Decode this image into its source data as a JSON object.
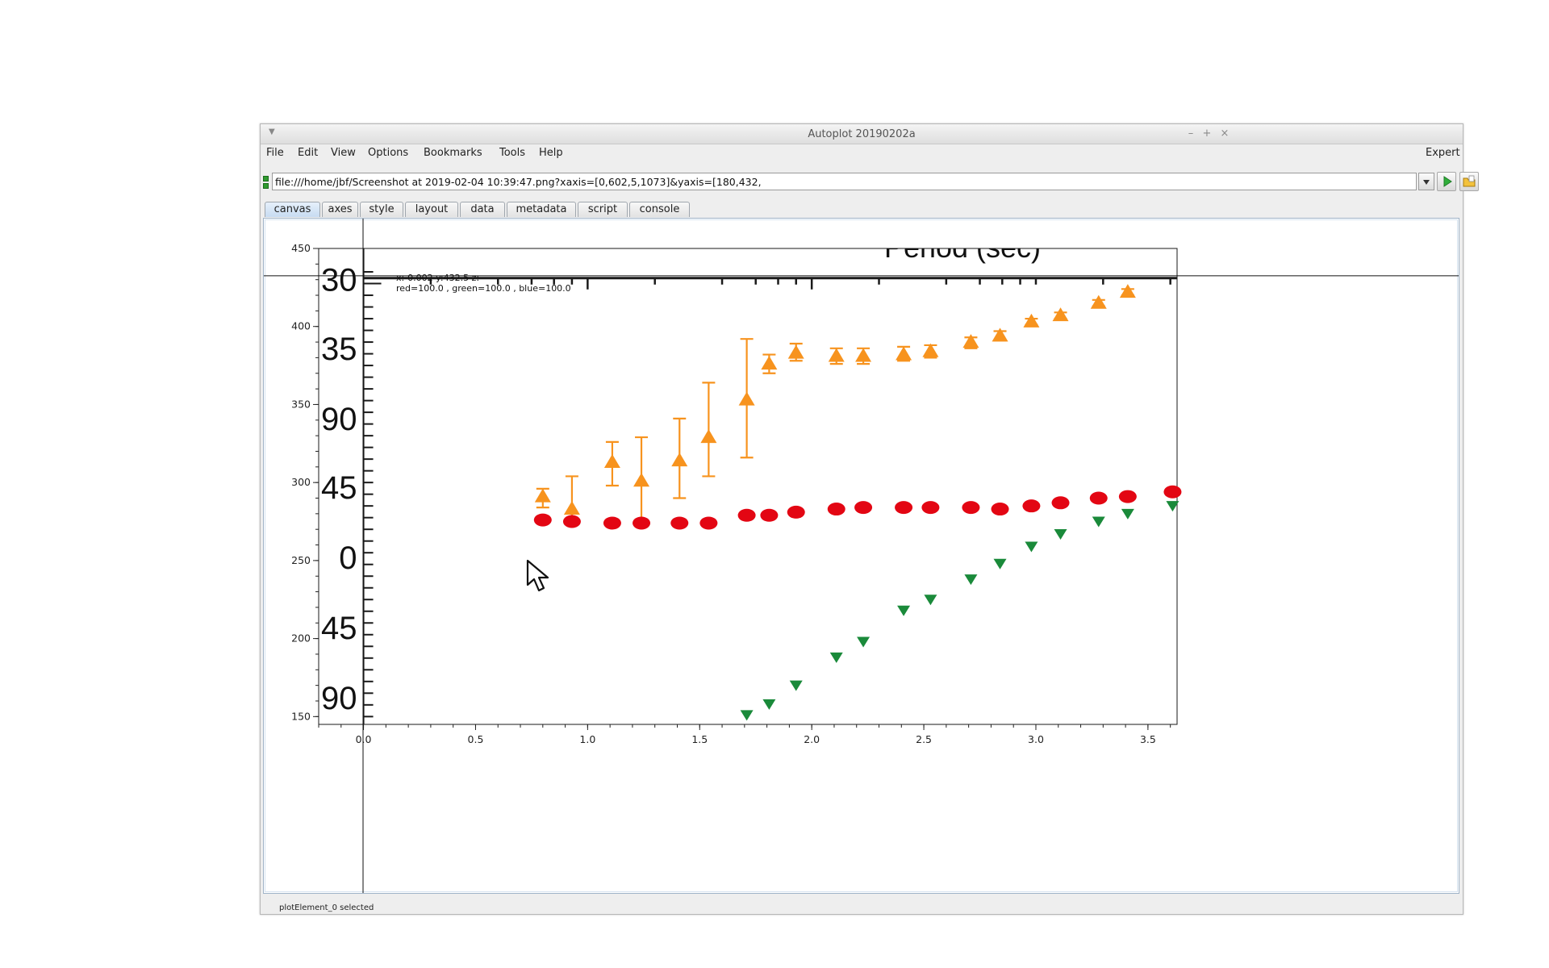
{
  "window": {
    "title": "Autoplot 20190202a"
  },
  "window_controls": {
    "minimize": "–",
    "maximize": "+",
    "close": "×"
  },
  "menu": {
    "items": [
      "File",
      "Edit",
      "View",
      "Options",
      "Bookmarks",
      "Tools",
      "Help"
    ],
    "expert_label": "Expert"
  },
  "url_bar": {
    "value": "file:///home/jbf/Screenshot at 2019-02-04 10:39:47.png?xaxis=[0,602,5,1073]&yaxis=[180,432,"
  },
  "tabs": [
    "canvas",
    "axes",
    "style",
    "layout",
    "data",
    "metadata",
    "script",
    "console"
  ],
  "active_tab": "canvas",
  "readout": {
    "line1": "x:-0.002  y:432.5  z:",
    "line2": "red=100.0 , green=100.0 , blue=100.0"
  },
  "status": "plotElement_0 selected",
  "icons": {
    "menu": "window-menu-icon",
    "run": "play-icon",
    "browse": "folder-icon",
    "cursor": "mouse-pointer-icon"
  },
  "colors": {
    "orange": "#f7931e",
    "red": "#e30613",
    "green": "#1a8a3a",
    "active_tab": "#c7dbf1"
  },
  "chart_data": {
    "type": "scatter",
    "x_axis": {
      "range": [
        -0.2,
        3.63
      ],
      "ticks": [
        0.0,
        0.5,
        1.0,
        1.5,
        2.0,
        2.5,
        3.0,
        3.5
      ],
      "tick_labels": [
        "0.0",
        "0.5",
        "1.0",
        "1.5",
        "2.0",
        "2.5",
        "3.0",
        "3.5"
      ]
    },
    "y_axis": {
      "range": [
        145,
        450
      ],
      "ticks": [
        150,
        200,
        250,
        300,
        350,
        400,
        450
      ],
      "tick_labels": [
        "150",
        "200",
        "250",
        "300",
        "350",
        "400",
        "450"
      ]
    },
    "image": {
      "header_text": "Period (sec)",
      "left_labels": [
        {
          "text": "30",
          "y": 430
        },
        {
          "text": "35",
          "y": 386
        },
        {
          "text": "90",
          "y": 341
        },
        {
          "text": "45",
          "y": 297
        },
        {
          "text": "0",
          "y": 252
        },
        {
          "text": "45",
          "y": 207
        },
        {
          "text": "90",
          "y": 162
        }
      ],
      "axis_x_data": 0.0,
      "ruler_y_data": 431
    },
    "crosshair": {
      "x": -0.002,
      "y": 432.5
    },
    "series": [
      {
        "marker": "triangle-up",
        "color": "#f7931e",
        "points": [
          {
            "x": 0.8,
            "y": 291,
            "lo": 284,
            "hi": 296
          },
          {
            "x": 0.93,
            "y": 283,
            "lo": 273,
            "hi": 304
          },
          {
            "x": 1.11,
            "y": 313,
            "lo": 298,
            "hi": 326
          },
          {
            "x": 1.24,
            "y": 301,
            "lo": 273,
            "hi": 329
          },
          {
            "x": 1.41,
            "y": 314,
            "lo": 290,
            "hi": 341
          },
          {
            "x": 1.54,
            "y": 329,
            "lo": 304,
            "hi": 364
          },
          {
            "x": 1.71,
            "y": 353,
            "lo": 316,
            "hi": 392
          },
          {
            "x": 1.81,
            "y": 376,
            "lo": 370,
            "hi": 382
          },
          {
            "x": 1.93,
            "y": 383,
            "lo": 378,
            "hi": 389
          },
          {
            "x": 2.11,
            "y": 381,
            "lo": 376,
            "hi": 386
          },
          {
            "x": 2.23,
            "y": 381,
            "lo": 376,
            "hi": 386
          },
          {
            "x": 2.41,
            "y": 382,
            "lo": 378,
            "hi": 387
          },
          {
            "x": 2.53,
            "y": 384,
            "lo": 380,
            "hi": 388
          },
          {
            "x": 2.71,
            "y": 390,
            "lo": 386,
            "hi": 393
          },
          {
            "x": 2.84,
            "y": 394,
            "lo": 391,
            "hi": 397
          },
          {
            "x": 2.98,
            "y": 403,
            "lo": 401,
            "hi": 405
          },
          {
            "x": 3.11,
            "y": 407,
            "lo": 405,
            "hi": 409
          },
          {
            "x": 3.28,
            "y": 415,
            "lo": 413,
            "hi": 417
          },
          {
            "x": 3.41,
            "y": 422,
            "lo": 420,
            "hi": 424
          }
        ]
      },
      {
        "marker": "ellipse",
        "color": "#e30613",
        "points": [
          {
            "x": 0.8,
            "y": 276
          },
          {
            "x": 0.93,
            "y": 275
          },
          {
            "x": 1.11,
            "y": 274
          },
          {
            "x": 1.24,
            "y": 274
          },
          {
            "x": 1.41,
            "y": 274
          },
          {
            "x": 1.54,
            "y": 274
          },
          {
            "x": 1.71,
            "y": 279
          },
          {
            "x": 1.81,
            "y": 279
          },
          {
            "x": 1.93,
            "y": 281
          },
          {
            "x": 2.11,
            "y": 283
          },
          {
            "x": 2.23,
            "y": 284
          },
          {
            "x": 2.41,
            "y": 284
          },
          {
            "x": 2.53,
            "y": 284
          },
          {
            "x": 2.71,
            "y": 284
          },
          {
            "x": 2.84,
            "y": 283
          },
          {
            "x": 2.98,
            "y": 285
          },
          {
            "x": 3.11,
            "y": 287
          },
          {
            "x": 3.28,
            "y": 290
          },
          {
            "x": 3.41,
            "y": 291
          },
          {
            "x": 3.61,
            "y": 294
          }
        ]
      },
      {
        "marker": "triangle-down",
        "color": "#1a8a3a",
        "points": [
          {
            "x": 1.71,
            "y": 151
          },
          {
            "x": 1.81,
            "y": 158
          },
          {
            "x": 1.93,
            "y": 170
          },
          {
            "x": 2.11,
            "y": 188
          },
          {
            "x": 2.23,
            "y": 198
          },
          {
            "x": 2.41,
            "y": 218
          },
          {
            "x": 2.53,
            "y": 225
          },
          {
            "x": 2.71,
            "y": 238
          },
          {
            "x": 2.84,
            "y": 248
          },
          {
            "x": 2.98,
            "y": 259
          },
          {
            "x": 3.11,
            "y": 267
          },
          {
            "x": 3.28,
            "y": 275
          },
          {
            "x": 3.41,
            "y": 280
          },
          {
            "x": 3.61,
            "y": 285
          }
        ]
      }
    ]
  }
}
